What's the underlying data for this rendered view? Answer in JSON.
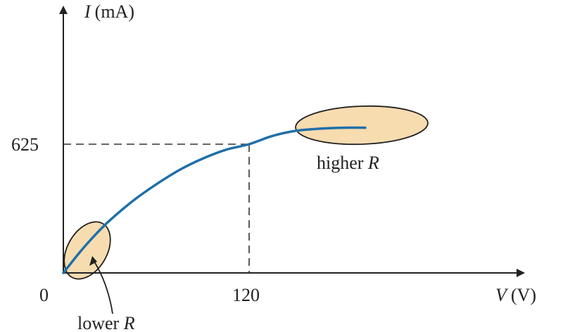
{
  "chart_data": {
    "type": "line",
    "title": "",
    "ylabel": {
      "symbol": "I",
      "unit": "(mA)"
    },
    "xlabel": {
      "symbol": "V",
      "unit": "(V)"
    },
    "origin_label": "0",
    "ytick_label": "625",
    "xtick_label": "120",
    "marked_point": {
      "x": 120,
      "y": 625
    },
    "xlim": [
      0,
      200
    ],
    "ylim": [
      0,
      950
    ],
    "series": [
      {
        "x": [
          0,
          10,
          20,
          30,
          45,
          60,
          75,
          90,
          105,
          120,
          135,
          150,
          165,
          180,
          195
        ],
        "y": [
          0,
          95,
          180,
          255,
          350,
          430,
          500,
          555,
          598,
          625,
          665,
          690,
          700,
          705,
          705
        ]
      }
    ],
    "annotations": [
      {
        "name": "lower-r",
        "text": [
          "lower ",
          "R"
        ],
        "x_range": [
          0,
          25
        ]
      },
      {
        "name": "higher-r",
        "text": [
          "higher ",
          "R"
        ],
        "x_range": [
          140,
          200
        ]
      }
    ],
    "grid": false,
    "colors": {
      "curve": "#1f6fa8",
      "highlight_fill": "#f7dcb0",
      "highlight_stroke": "#222222",
      "axis": "#222222"
    }
  }
}
